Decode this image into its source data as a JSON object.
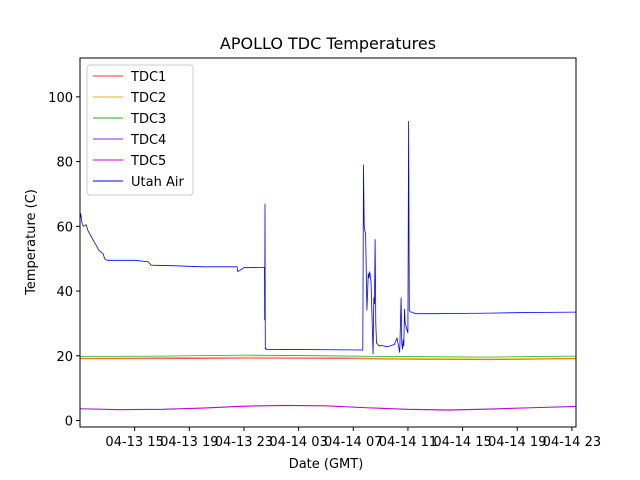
{
  "chart_data": {
    "type": "line",
    "title": "APOLLO TDC Temperatures",
    "xlabel": "Date (GMT)",
    "ylabel": "Temperature (C)",
    "x_unit": "hours since 2018-04-13 11:00 GMT",
    "xlim": [
      0,
      36.3
    ],
    "ylim": [
      -2,
      112
    ],
    "yticks": [
      0,
      20,
      40,
      60,
      80,
      100
    ],
    "xticks": [
      {
        "x": 4,
        "label": "04-13 15"
      },
      {
        "x": 8,
        "label": "04-13 19"
      },
      {
        "x": 12,
        "label": "04-13 23"
      },
      {
        "x": 16,
        "label": "04-14 03"
      },
      {
        "x": 20,
        "label": "04-14 07"
      },
      {
        "x": 24,
        "label": "04-14 11"
      },
      {
        "x": 28,
        "label": "04-14 15"
      },
      {
        "x": 32,
        "label": "04-14 19"
      },
      {
        "x": 36,
        "label": "04-14 23"
      }
    ],
    "legend_position": "top-left",
    "series": [
      {
        "name": "TDC1",
        "color": "#ff3030",
        "x": [
          0,
          6,
          12,
          18,
          22,
          26,
          30,
          34,
          36.3
        ],
        "y": [
          19.1,
          19.1,
          19.3,
          19.2,
          19.0,
          18.9,
          18.8,
          19.0,
          19.1
        ]
      },
      {
        "name": "TDC2",
        "color": "#e6b800",
        "x": [
          0,
          6,
          12,
          18,
          22,
          26,
          30,
          34,
          36.3
        ],
        "y": [
          19.3,
          19.4,
          19.6,
          19.5,
          19.3,
          19.1,
          19.0,
          19.2,
          19.3
        ]
      },
      {
        "name": "TDC3",
        "color": "#22aa22",
        "x": [
          0,
          6,
          12,
          18,
          22,
          26,
          30,
          34,
          36.3
        ],
        "y": [
          19.8,
          19.9,
          20.2,
          20.0,
          19.8,
          19.7,
          19.6,
          19.8,
          19.9
        ]
      },
      {
        "name": "TDC4",
        "color": "#8a2be2",
        "x": [
          0,
          3,
          6,
          9,
          12,
          15,
          18,
          21,
          24,
          27,
          30,
          33,
          36.3
        ],
        "y": [
          3.7,
          3.4,
          3.5,
          3.9,
          4.5,
          4.7,
          4.6,
          4.0,
          3.5,
          3.3,
          3.6,
          4.0,
          4.4
        ]
      },
      {
        "name": "TDC5",
        "color": "#cc00cc",
        "x": [
          0,
          3,
          6,
          9,
          12,
          15,
          18,
          21,
          24,
          27,
          30,
          33,
          36.3
        ],
        "y": [
          3.6,
          3.3,
          3.4,
          3.8,
          4.4,
          4.6,
          4.5,
          3.9,
          3.4,
          3.2,
          3.5,
          3.9,
          4.3
        ]
      },
      {
        "name": "Utah Air",
        "color": "#0000ff",
        "x": [
          0,
          0.05,
          0.15,
          0.25,
          0.45,
          0.6,
          0.8,
          1.0,
          1.2,
          1.4,
          1.7,
          1.8,
          2.0,
          4.0,
          5.0,
          5.2,
          7.0,
          9.0,
          10.0,
          11.5,
          11.55,
          12.0,
          13.5,
          13.52,
          13.54,
          13.56,
          13.6,
          13.62,
          13.64,
          20.7,
          20.75,
          20.8,
          20.85,
          20.9,
          21.0,
          21.1,
          21.15,
          21.2,
          21.3,
          21.45,
          21.5,
          21.55,
          21.6,
          21.65,
          21.7,
          21.8,
          21.9,
          22.0,
          22.5,
          23.0,
          23.2,
          23.4,
          23.5,
          23.55,
          23.6,
          23.65,
          23.7,
          23.75,
          23.8,
          24.0,
          24.05,
          24.1,
          24.2,
          24.3,
          24.35,
          24.4,
          24.45,
          24.5,
          24.55,
          24.6,
          26.0,
          28.0,
          30.0,
          32.0,
          34.0,
          36.3
        ],
        "y": [
          62,
          64,
          61,
          60,
          60.5,
          58.5,
          57,
          55.5,
          54,
          52.5,
          51.5,
          50,
          49.5,
          49.5,
          49,
          48,
          47.8,
          47.5,
          47.5,
          47.5,
          46,
          47.2,
          47.3,
          31,
          67,
          22,
          22.3,
          22.2,
          22,
          21.8,
          79,
          60,
          58.5,
          58,
          34,
          45.5,
          44,
          46,
          43,
          20.5,
          38,
          36,
          56,
          30,
          24,
          23.5,
          23,
          23.2,
          22.8,
          23.5,
          25.5,
          21,
          38,
          24,
          22,
          25,
          23,
          34.5,
          30,
          27,
          92.5,
          34,
          33.5,
          33.5,
          33.4,
          33.3,
          33.2,
          33.1,
          33.0,
          33.0,
          33.0,
          33.1,
          33.2,
          33.3,
          33.4,
          33.5
        ]
      }
    ]
  }
}
